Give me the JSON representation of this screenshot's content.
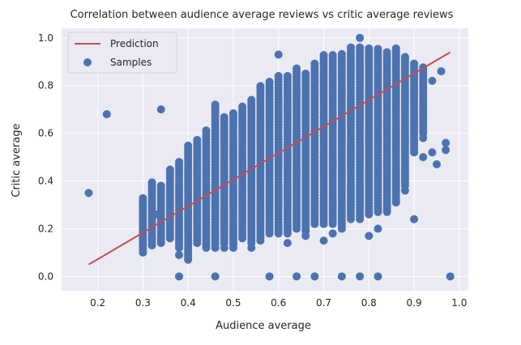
{
  "chart_data": {
    "type": "scatter",
    "title": "Correlation between audience average reviews vs critic average reviews",
    "xlabel": "Audience average",
    "ylabel": "Critic average",
    "xlim": [
      0.12,
      1.02
    ],
    "ylim": [
      -0.06,
      1.04
    ],
    "x_ticks": [
      0.2,
      0.3,
      0.4,
      0.5,
      0.6,
      0.7,
      0.8,
      0.9,
      1.0
    ],
    "y_ticks": [
      0.0,
      0.2,
      0.4,
      0.6,
      0.8,
      1.0
    ],
    "grid": true,
    "legend_position": "top-left",
    "colors": {
      "background": "#eaeaf2",
      "grid": "#ffffff",
      "samples": "#4c72b0",
      "prediction": "#c44e52"
    },
    "series": [
      {
        "name": "Prediction",
        "kind": "line",
        "points": [
          [
            0.18,
            0.05
          ],
          [
            0.98,
            0.94
          ]
        ]
      },
      {
        "name": "Samples",
        "kind": "scatter",
        "columns": [
          {
            "x": 0.3,
            "ymin": 0.1,
            "ymax": 0.33
          },
          {
            "x": 0.32,
            "ymin": 0.13,
            "ymax": 0.4
          },
          {
            "x": 0.34,
            "ymin": 0.14,
            "ymax": 0.38
          },
          {
            "x": 0.36,
            "ymin": 0.16,
            "ymax": 0.45
          },
          {
            "x": 0.38,
            "ymin": 0.12,
            "ymax": 0.48
          },
          {
            "x": 0.4,
            "ymin": 0.08,
            "ymax": 0.55
          },
          {
            "x": 0.42,
            "ymin": 0.14,
            "ymax": 0.58
          },
          {
            "x": 0.44,
            "ymin": 0.12,
            "ymax": 0.62
          },
          {
            "x": 0.46,
            "ymin": 0.12,
            "ymax": 0.73
          },
          {
            "x": 0.48,
            "ymin": 0.14,
            "ymax": 0.67
          },
          {
            "x": 0.5,
            "ymin": 0.12,
            "ymax": 0.69
          },
          {
            "x": 0.52,
            "ymin": 0.16,
            "ymax": 0.72
          },
          {
            "x": 0.54,
            "ymin": 0.14,
            "ymax": 0.75
          },
          {
            "x": 0.56,
            "ymin": 0.15,
            "ymax": 0.8
          },
          {
            "x": 0.58,
            "ymin": 0.18,
            "ymax": 0.82
          },
          {
            "x": 0.6,
            "ymin": 0.18,
            "ymax": 0.85
          },
          {
            "x": 0.62,
            "ymin": 0.18,
            "ymax": 0.84
          },
          {
            "x": 0.64,
            "ymin": 0.2,
            "ymax": 0.88
          },
          {
            "x": 0.66,
            "ymin": 0.19,
            "ymax": 0.86
          },
          {
            "x": 0.68,
            "ymin": 0.22,
            "ymax": 0.9
          },
          {
            "x": 0.7,
            "ymin": 0.22,
            "ymax": 0.93
          },
          {
            "x": 0.72,
            "ymin": 0.22,
            "ymax": 0.93
          },
          {
            "x": 0.74,
            "ymin": 0.2,
            "ymax": 0.94
          },
          {
            "x": 0.76,
            "ymin": 0.24,
            "ymax": 0.96
          },
          {
            "x": 0.78,
            "ymin": 0.24,
            "ymax": 0.96
          },
          {
            "x": 0.8,
            "ymin": 0.26,
            "ymax": 0.96
          },
          {
            "x": 0.82,
            "ymin": 0.27,
            "ymax": 0.96
          },
          {
            "x": 0.84,
            "ymin": 0.28,
            "ymax": 0.94
          },
          {
            "x": 0.86,
            "ymin": 0.32,
            "ymax": 0.96
          },
          {
            "x": 0.88,
            "ymin": 0.38,
            "ymax": 0.93
          },
          {
            "x": 0.9,
            "ymin": 0.52,
            "ymax": 0.9
          },
          {
            "x": 0.92,
            "ymin": 0.6,
            "ymax": 0.88
          }
        ],
        "outliers": [
          [
            0.18,
            0.35
          ],
          [
            0.22,
            0.68
          ],
          [
            0.34,
            0.7
          ],
          [
            0.38,
            0.0
          ],
          [
            0.46,
            0.0
          ],
          [
            0.58,
            0.0
          ],
          [
            0.64,
            0.0
          ],
          [
            0.68,
            0.0
          ],
          [
            0.74,
            0.0
          ],
          [
            0.78,
            0.0
          ],
          [
            0.82,
            0.0
          ],
          [
            0.98,
            0.0
          ],
          [
            0.6,
            0.93
          ],
          [
            0.78,
            1.0
          ],
          [
            0.9,
            0.24
          ],
          [
            0.96,
            0.86
          ],
          [
            0.97,
            0.56
          ],
          [
            0.97,
            0.53
          ],
          [
            0.94,
            0.52
          ],
          [
            0.94,
            0.82
          ],
          [
            0.95,
            0.47
          ],
          [
            0.92,
            0.5
          ],
          [
            0.88,
            0.36
          ],
          [
            0.86,
            0.31
          ],
          [
            0.84,
            0.27
          ],
          [
            0.82,
            0.2
          ],
          [
            0.8,
            0.17
          ],
          [
            0.72,
            0.18
          ],
          [
            0.7,
            0.15
          ],
          [
            0.66,
            0.17
          ],
          [
            0.62,
            0.14
          ],
          [
            0.54,
            0.12
          ],
          [
            0.48,
            0.12
          ],
          [
            0.4,
            0.07
          ],
          [
            0.38,
            0.09
          ],
          [
            0.34,
            0.22
          ],
          [
            0.32,
            0.16
          ],
          [
            0.3,
            0.22
          ],
          [
            0.33,
            0.26
          ],
          [
            0.92,
            0.58
          ]
        ]
      }
    ]
  }
}
